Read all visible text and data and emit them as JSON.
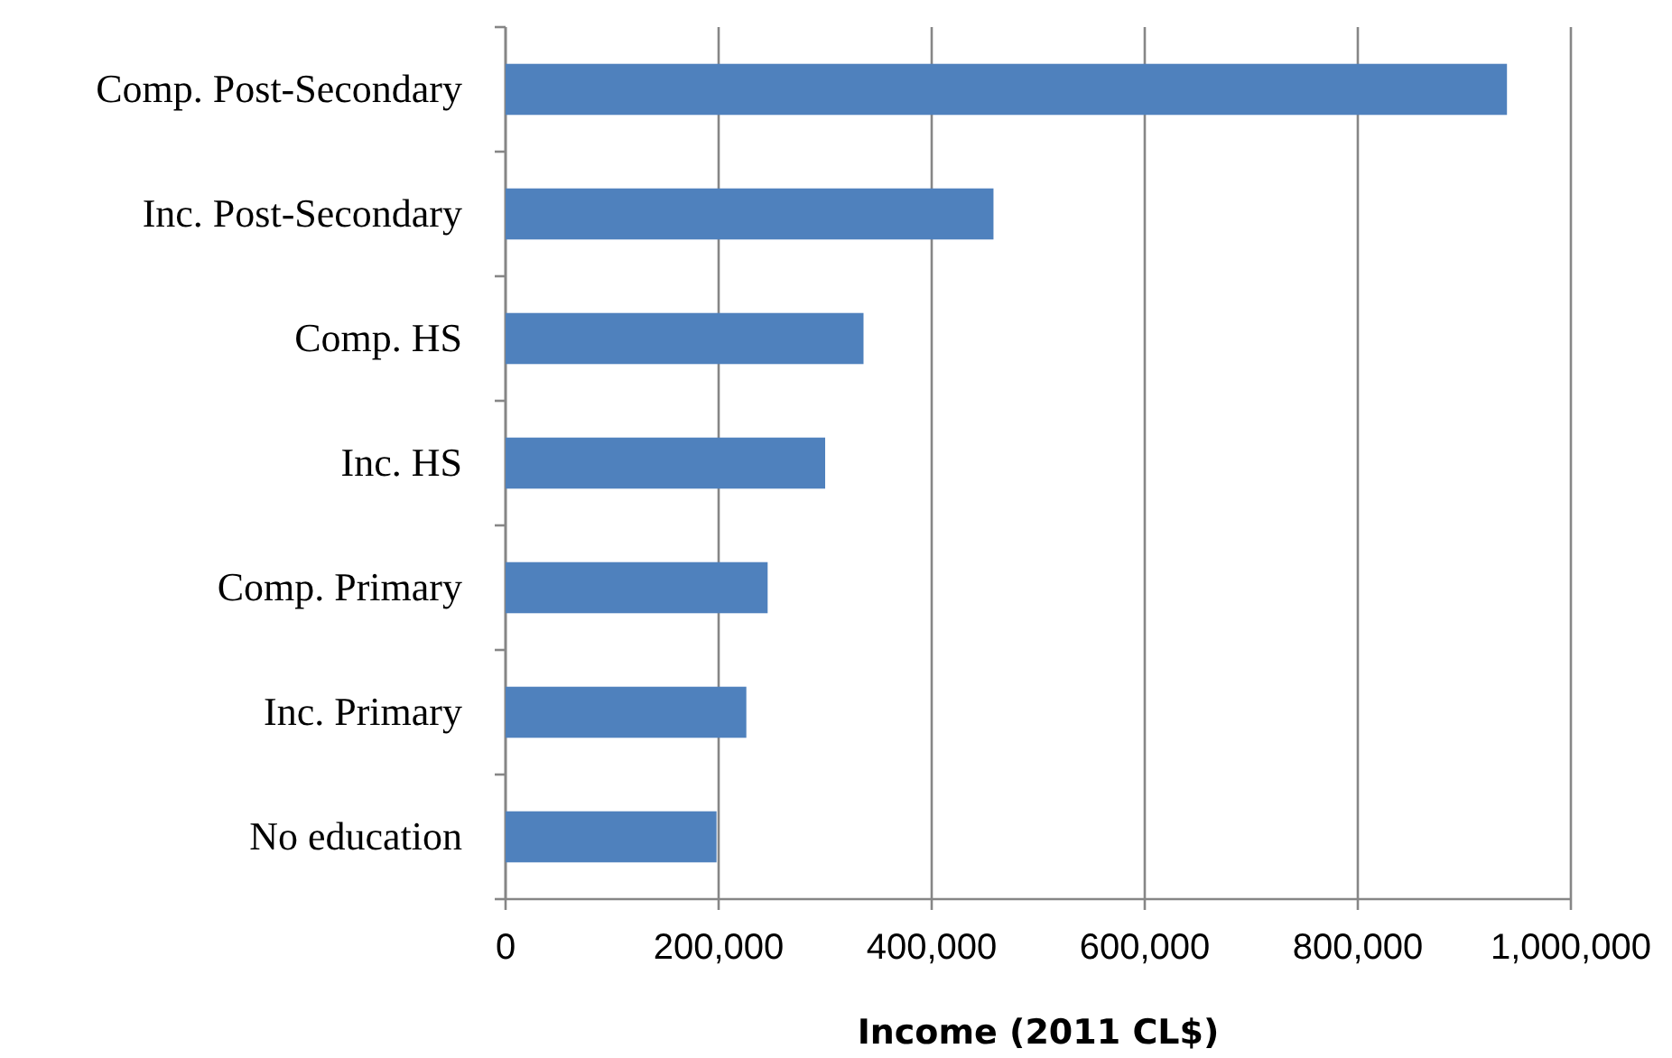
{
  "chart_data": {
    "type": "bar",
    "orientation": "horizontal",
    "xlabel": "Income (2011 CL$)",
    "categories": [
      "Comp. Post-Secondary",
      "Inc. Post-Secondary",
      "Comp. HS",
      "Inc. HS",
      "Comp. Primary",
      "Inc. Primary",
      "No education"
    ],
    "values": [
      940000,
      458000,
      336000,
      300000,
      246000,
      226000,
      198000
    ],
    "color": "#4f81bd",
    "xlim": [
      0,
      1000000
    ],
    "xticks": [
      {
        "value": 0,
        "label": "0"
      },
      {
        "value": 200000,
        "label": "200,000"
      },
      {
        "value": 400000,
        "label": "400,000"
      },
      {
        "value": 600000,
        "label": "600,000"
      },
      {
        "value": 800000,
        "label": "800,000"
      },
      {
        "value": 1000000,
        "label": "1,000,000"
      }
    ],
    "grid": "x"
  }
}
